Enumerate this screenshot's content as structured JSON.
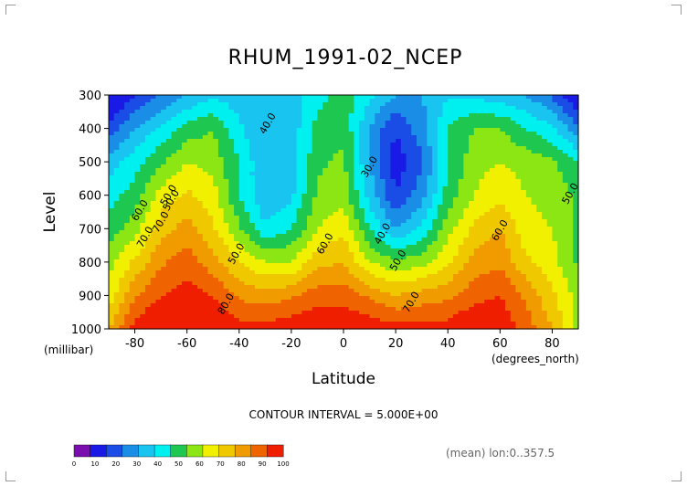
{
  "chart_data": {
    "type": "heatmap",
    "title": "RHUM_1991-02_NCEP",
    "xlabel": "Latitude",
    "ylabel": "Level",
    "x_units": "(degrees_north)",
    "y_units": "(millibar)",
    "xlim": [
      -90,
      90
    ],
    "ylim": [
      1000,
      300
    ],
    "x_ticks": [
      "-80",
      "-60",
      "-40",
      "-20",
      "0",
      "20",
      "40",
      "60",
      "80"
    ],
    "y_ticks": [
      "300",
      "400",
      "500",
      "600",
      "700",
      "800",
      "900",
      "1000"
    ],
    "contour_interval": "CONTOUR INTERVAL = 5.000E+00",
    "contour_labels": [
      "40.0",
      "30.0",
      "50.0",
      "50.0",
      "60.0",
      "70.0",
      "60.0",
      "70.0",
      "80.0",
      "50.0",
      "40.0",
      "50.0",
      "60.0",
      "70.0",
      "50.0"
    ],
    "annotation": "(mean) lon:0..357.5",
    "colorbar": {
      "ticks": [
        "0",
        "10",
        "20",
        "30",
        "40",
        "50",
        "60",
        "70",
        "80",
        "90",
        "100"
      ],
      "colors": [
        "#7a0fb0",
        "#1a1ae6",
        "#1a4de6",
        "#1a8ee6",
        "#19c4f0",
        "#00f0f0",
        "#1ec850",
        "#8ce614",
        "#f0f000",
        "#f0c800",
        "#f09b00",
        "#f06400",
        "#f01e00"
      ]
    },
    "x": [
      -90,
      -80,
      -70,
      -60,
      -50,
      -40,
      -30,
      -20,
      -10,
      0,
      10,
      20,
      30,
      40,
      50,
      60,
      70,
      80,
      90
    ],
    "y": [
      300,
      400,
      500,
      600,
      700,
      800,
      900,
      1000
    ],
    "z": [
      [
        22,
        30,
        35,
        40,
        44,
        42,
        40,
        42,
        48,
        52,
        46,
        40,
        40,
        44,
        44,
        42,
        40,
        34,
        24
      ],
      [
        32,
        40,
        46,
        52,
        55,
        46,
        40,
        42,
        52,
        54,
        40,
        30,
        38,
        50,
        55,
        55,
        50,
        46,
        36
      ],
      [
        42,
        48,
        54,
        60,
        58,
        50,
        40,
        42,
        54,
        56,
        40,
        27,
        34,
        50,
        58,
        60,
        58,
        56,
        50
      ],
      [
        48,
        52,
        62,
        66,
        62,
        50,
        40,
        44,
        56,
        58,
        43,
        30,
        38,
        52,
        60,
        64,
        60,
        58,
        54
      ],
      [
        52,
        58,
        68,
        72,
        66,
        56,
        46,
        50,
        60,
        64,
        50,
        40,
        46,
        58,
        66,
        70,
        62,
        60,
        54
      ],
      [
        58,
        66,
        74,
        78,
        72,
        65,
        60,
        60,
        68,
        70,
        60,
        56,
        58,
        64,
        72,
        74,
        66,
        62,
        54
      ],
      [
        62,
        74,
        80,
        82,
        80,
        74,
        72,
        74,
        78,
        78,
        74,
        70,
        72,
        74,
        78,
        80,
        74,
        66,
        58
      ],
      [
        70,
        82,
        88,
        88,
        86,
        82,
        82,
        84,
        84,
        84,
        84,
        82,
        82,
        82,
        86,
        84,
        78,
        70,
        58
      ]
    ]
  }
}
